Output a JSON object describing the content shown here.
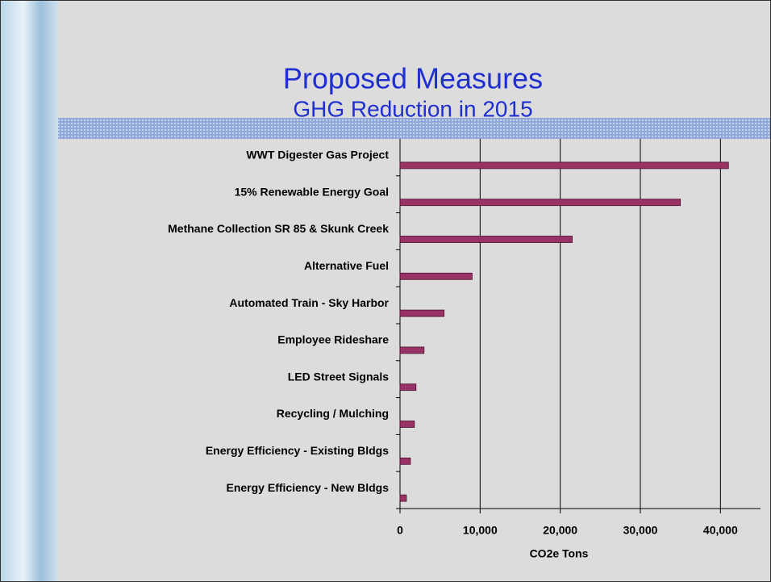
{
  "chart_data": {
    "type": "bar",
    "orientation": "horizontal",
    "title": "Proposed Measures",
    "subtitle": "GHG Reduction in 2015",
    "x_label": "CO2e Tons",
    "categories": [
      "WWT Digester Gas Project",
      "15% Renewable Energy Goal",
      "Methane Collection SR 85 & Skunk Creek",
      "Alternative Fuel",
      "Automated Train - Sky Harbor",
      "Employee Rideshare",
      "LED Street Signals",
      "Recycling / Mulching",
      "Energy Efficiency - Existing Bldgs",
      "Energy Efficiency - New Bldgs"
    ],
    "values": [
      41000,
      35000,
      21500,
      9000,
      5500,
      3000,
      2000,
      1800,
      1300,
      800
    ],
    "color": "#993366",
    "xlim": [
      0,
      45000
    ],
    "xticks": [
      0,
      {
        "value": 10000,
        "label": "10,000"
      },
      {
        "value": 20000,
        "label": "20,000"
      },
      {
        "value": 30000,
        "label": "30,000"
      },
      {
        "value": 40000,
        "label": "40,000"
      }
    ],
    "grid": true
  }
}
